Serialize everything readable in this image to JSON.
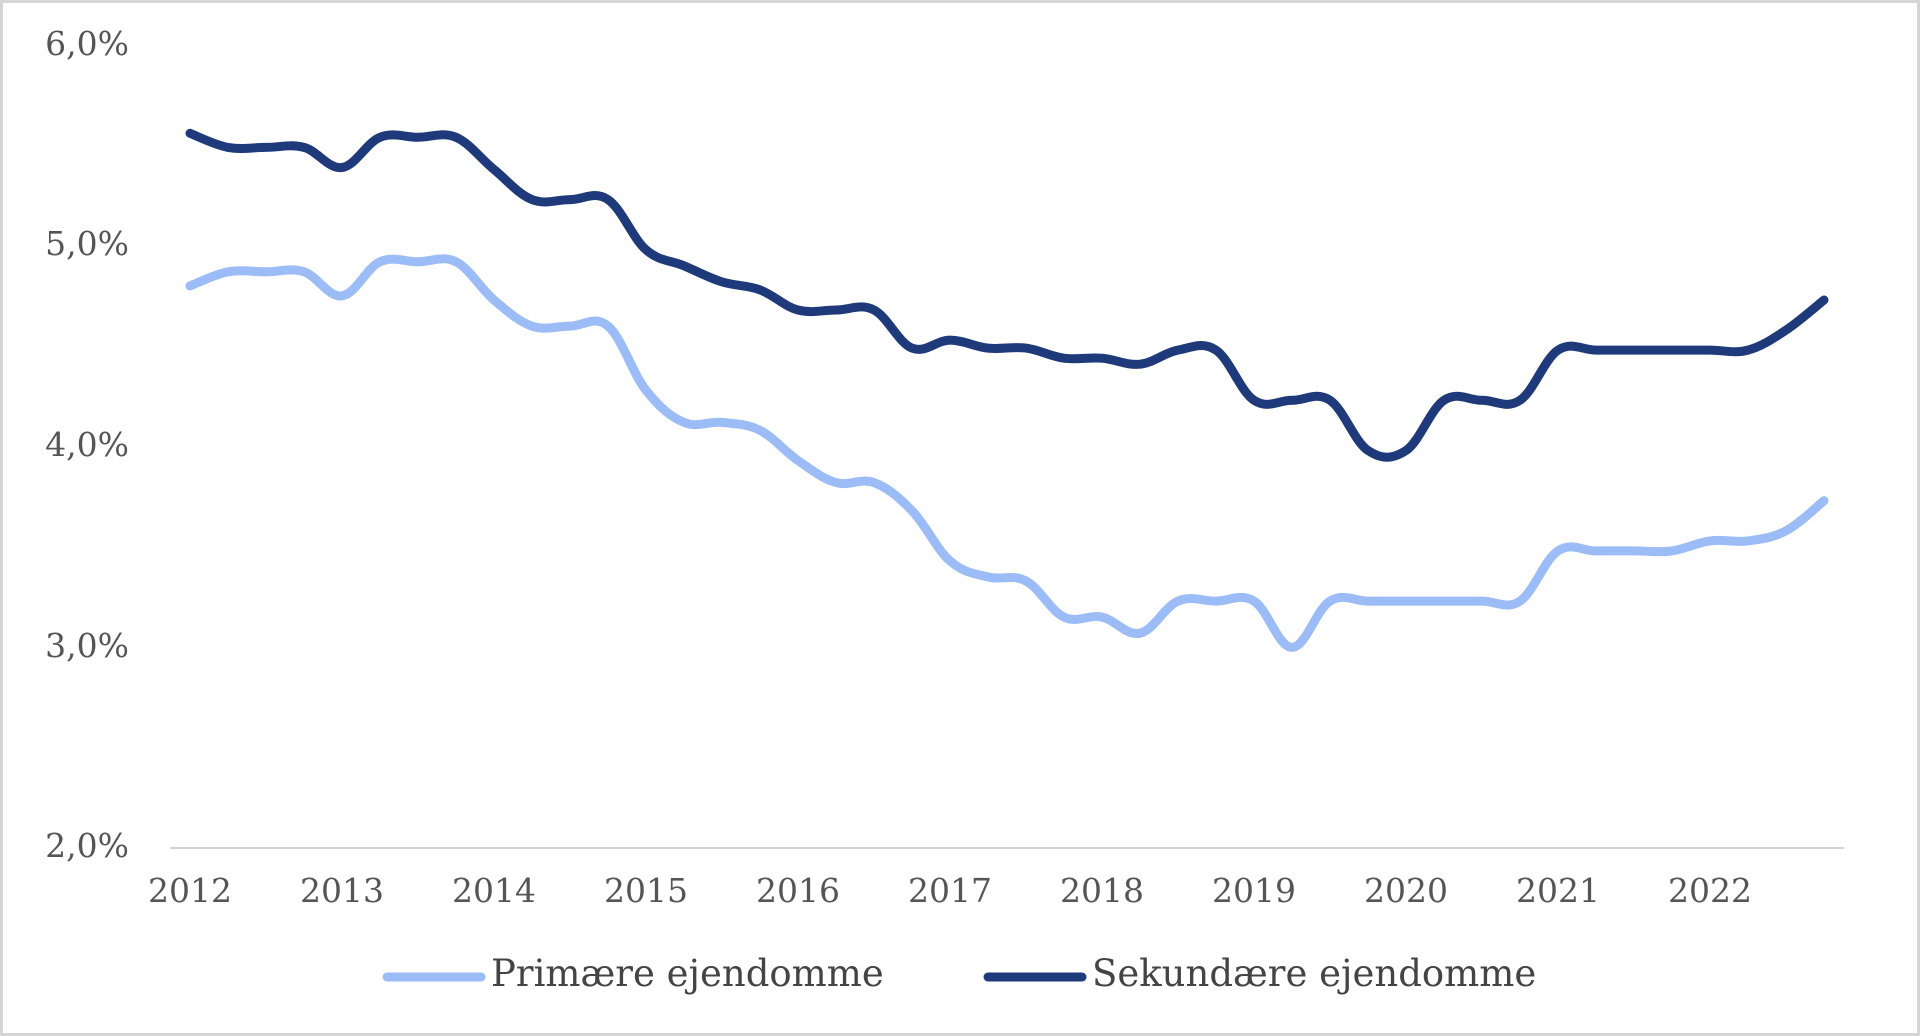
{
  "chart_data": {
    "type": "line",
    "title": "",
    "xlabel": "",
    "ylabel": "",
    "x_ticks": [
      "2012",
      "2013",
      "2014",
      "2015",
      "2016",
      "2017",
      "2018",
      "2019",
      "2020",
      "2021",
      "2022"
    ],
    "y_ticks": [
      "6,0%",
      "5,0%",
      "4,0%",
      "3,0%",
      "2,0%"
    ],
    "ylim": [
      2.0,
      6.0
    ],
    "xlim": [
      2012.0,
      2022.95
    ],
    "grid": false,
    "legend_position": "bottom",
    "series": [
      {
        "name": "Primære ejendomme",
        "color": "#9bbcf7",
        "x": [
          2012.0,
          2012.25,
          2012.5,
          2012.75,
          2013.0,
          2013.25,
          2013.5,
          2013.75,
          2014.0,
          2014.25,
          2014.5,
          2014.75,
          2015.0,
          2015.25,
          2015.5,
          2015.75,
          2016.0,
          2016.25,
          2016.5,
          2016.75,
          2017.0,
          2017.25,
          2017.5,
          2017.75,
          2018.0,
          2018.25,
          2018.5,
          2018.75,
          2019.0,
          2019.25,
          2019.5,
          2019.75,
          2020.0,
          2020.25,
          2020.5,
          2020.75,
          2021.0,
          2021.25,
          2021.5,
          2021.75,
          2022.0,
          2022.25,
          2022.5,
          2022.75
        ],
        "values": [
          4.8,
          4.87,
          4.87,
          4.87,
          4.75,
          4.92,
          4.92,
          4.92,
          4.73,
          4.6,
          4.6,
          4.6,
          4.28,
          4.12,
          4.12,
          4.08,
          3.93,
          3.82,
          3.82,
          3.68,
          3.43,
          3.35,
          3.33,
          3.15,
          3.15,
          3.07,
          3.23,
          3.23,
          3.23,
          3.0,
          3.23,
          3.23,
          3.23,
          3.23,
          3.23,
          3.23,
          3.48,
          3.48,
          3.48,
          3.48,
          3.53,
          3.53,
          3.58,
          3.73
        ]
      },
      {
        "name": "Sekundære ejendomme",
        "color": "#1f3a7a",
        "x": [
          2012.0,
          2012.25,
          2012.5,
          2012.75,
          2013.0,
          2013.25,
          2013.5,
          2013.75,
          2014.0,
          2014.25,
          2014.5,
          2014.75,
          2015.0,
          2015.25,
          2015.5,
          2015.75,
          2016.0,
          2016.25,
          2016.5,
          2016.75,
          2017.0,
          2017.25,
          2017.5,
          2017.75,
          2018.0,
          2018.25,
          2018.5,
          2018.75,
          2019.0,
          2019.25,
          2019.5,
          2019.75,
          2020.0,
          2020.25,
          2020.5,
          2020.75,
          2021.0,
          2021.25,
          2021.5,
          2021.75,
          2022.0,
          2022.25,
          2022.5,
          2022.75
        ],
        "values": [
          5.56,
          5.49,
          5.49,
          5.49,
          5.39,
          5.54,
          5.54,
          5.54,
          5.38,
          5.23,
          5.23,
          5.23,
          4.98,
          4.9,
          4.82,
          4.78,
          4.68,
          4.68,
          4.68,
          4.49,
          4.53,
          4.49,
          4.49,
          4.44,
          4.44,
          4.41,
          4.48,
          4.48,
          4.23,
          4.23,
          4.23,
          3.98,
          3.98,
          4.23,
          4.23,
          4.23,
          4.48,
          4.48,
          4.48,
          4.48,
          4.48,
          4.48,
          4.58,
          4.73
        ]
      }
    ]
  }
}
